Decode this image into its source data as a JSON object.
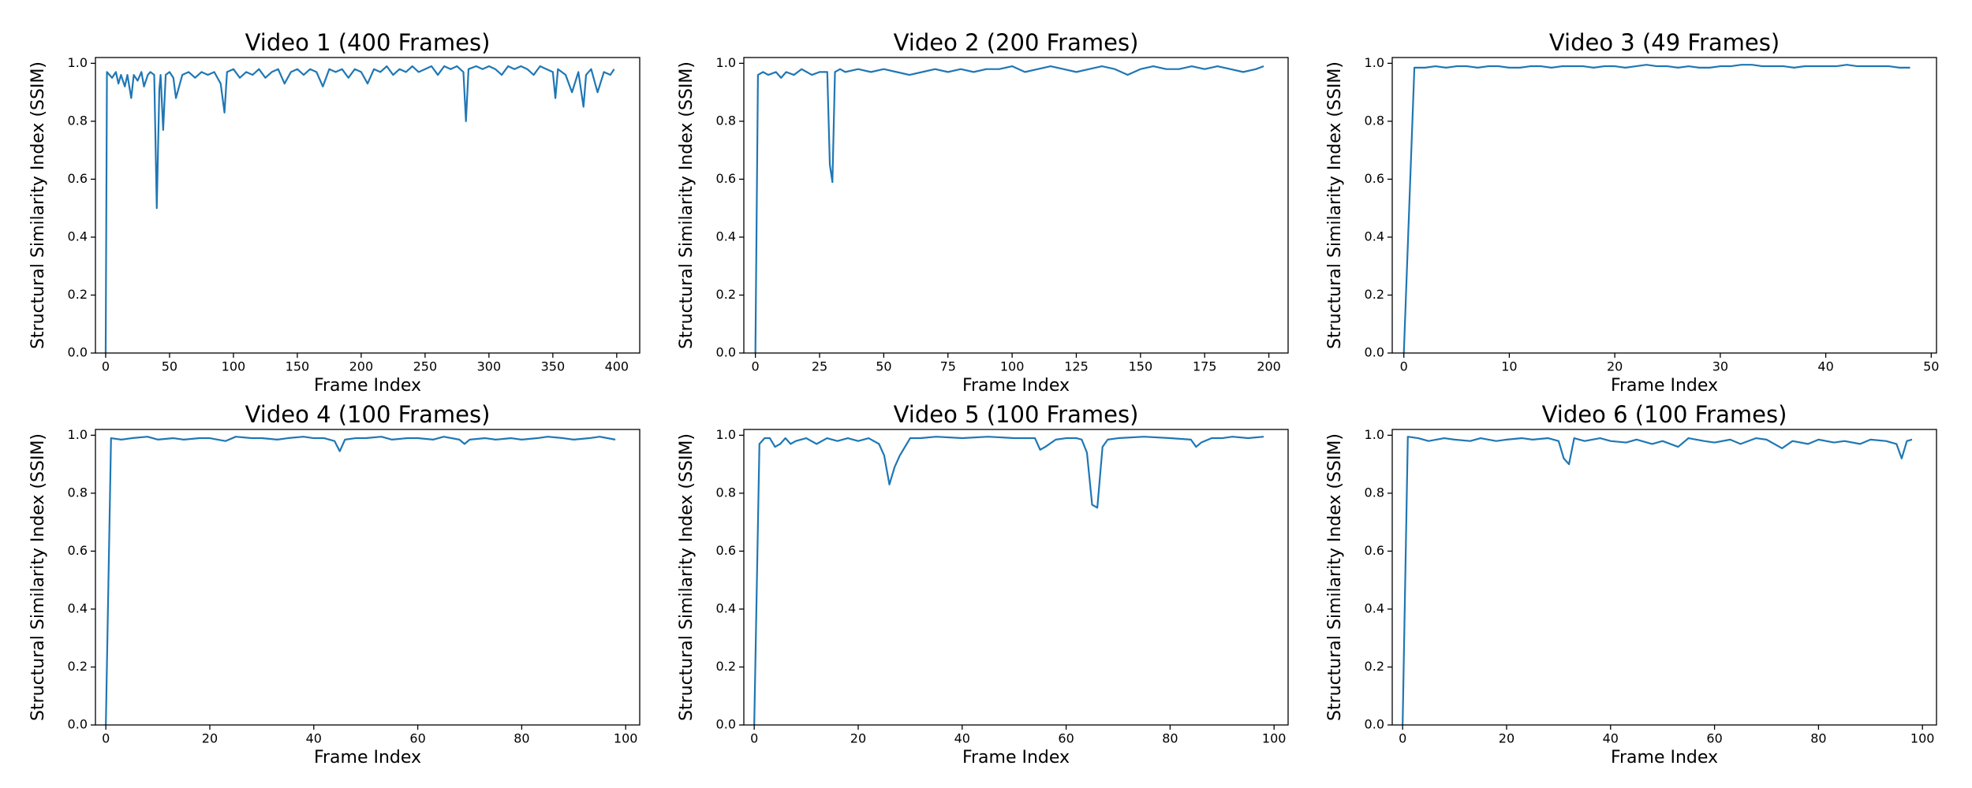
{
  "chart_data": [
    {
      "type": "line",
      "title": "Video 1 (400 Frames)",
      "xlabel": "Frame Index",
      "ylabel": "Structural Similarity Index (SSIM)",
      "color": "#1f77b4",
      "x": [
        0,
        1,
        5,
        8,
        10,
        12,
        15,
        17,
        20,
        22,
        25,
        28,
        30,
        33,
        35,
        38,
        40,
        42,
        43,
        45,
        47,
        50,
        53,
        55,
        60,
        65,
        70,
        75,
        80,
        85,
        90,
        93,
        95,
        100,
        105,
        110,
        115,
        120,
        125,
        130,
        135,
        140,
        145,
        150,
        155,
        160,
        165,
        170,
        175,
        180,
        185,
        190,
        195,
        200,
        205,
        210,
        215,
        220,
        225,
        230,
        235,
        240,
        245,
        250,
        255,
        260,
        265,
        270,
        275,
        280,
        282,
        284,
        290,
        295,
        300,
        305,
        310,
        315,
        320,
        325,
        330,
        335,
        340,
        345,
        350,
        352,
        354,
        360,
        365,
        370,
        374,
        376,
        380,
        385,
        390,
        395,
        398
      ],
      "values": [
        0,
        0.97,
        0.95,
        0.97,
        0.93,
        0.96,
        0.92,
        0.96,
        0.88,
        0.96,
        0.94,
        0.97,
        0.92,
        0.96,
        0.97,
        0.96,
        0.5,
        0.91,
        0.96,
        0.77,
        0.96,
        0.97,
        0.95,
        0.88,
        0.96,
        0.97,
        0.95,
        0.97,
        0.96,
        0.97,
        0.93,
        0.83,
        0.97,
        0.98,
        0.95,
        0.97,
        0.96,
        0.98,
        0.95,
        0.97,
        0.98,
        0.93,
        0.97,
        0.98,
        0.96,
        0.98,
        0.97,
        0.92,
        0.98,
        0.97,
        0.98,
        0.95,
        0.98,
        0.97,
        0.93,
        0.98,
        0.97,
        0.99,
        0.96,
        0.98,
        0.97,
        0.99,
        0.97,
        0.98,
        0.99,
        0.96,
        0.99,
        0.98,
        0.99,
        0.97,
        0.8,
        0.98,
        0.99,
        0.98,
        0.99,
        0.98,
        0.96,
        0.99,
        0.98,
        0.99,
        0.98,
        0.96,
        0.99,
        0.98,
        0.97,
        0.88,
        0.98,
        0.96,
        0.9,
        0.97,
        0.85,
        0.96,
        0.98,
        0.9,
        0.97,
        0.96,
        0.98
      ],
      "xlim": [
        -8,
        418
      ],
      "xticks": [
        0,
        50,
        100,
        150,
        200,
        250,
        300,
        350,
        400
      ],
      "ylim": [
        0,
        1.02
      ],
      "yticks": [
        {
          "value": 0,
          "label": "0.0"
        },
        {
          "value": 0.2,
          "label": "0.2"
        },
        {
          "value": 0.4,
          "label": "0.4"
        },
        {
          "value": 0.6,
          "label": "0.6"
        },
        {
          "value": 0.8,
          "label": "0.8"
        },
        {
          "value": 1,
          "label": "1.0"
        }
      ]
    },
    {
      "type": "line",
      "title": "Video 2 (200 Frames)",
      "xlabel": "Frame Index",
      "ylabel": "Structural Similarity Index (SSIM)",
      "color": "#1f77b4",
      "x": [
        0,
        1,
        3,
        5,
        8,
        10,
        12,
        15,
        18,
        20,
        22,
        25,
        27,
        28,
        29,
        30,
        31,
        33,
        35,
        40,
        45,
        50,
        55,
        60,
        65,
        70,
        75,
        80,
        85,
        90,
        95,
        100,
        105,
        110,
        115,
        120,
        125,
        130,
        135,
        140,
        145,
        150,
        155,
        160,
        165,
        170,
        175,
        180,
        185,
        190,
        195,
        198
      ],
      "values": [
        0,
        0.96,
        0.97,
        0.96,
        0.97,
        0.95,
        0.97,
        0.96,
        0.98,
        0.97,
        0.96,
        0.97,
        0.97,
        0.97,
        0.65,
        0.59,
        0.97,
        0.98,
        0.97,
        0.98,
        0.97,
        0.98,
        0.97,
        0.96,
        0.97,
        0.98,
        0.97,
        0.98,
        0.97,
        0.98,
        0.98,
        0.99,
        0.97,
        0.98,
        0.99,
        0.98,
        0.97,
        0.98,
        0.99,
        0.98,
        0.96,
        0.98,
        0.99,
        0.98,
        0.98,
        0.99,
        0.98,
        0.99,
        0.98,
        0.97,
        0.98,
        0.99
      ],
      "xlim": [
        -4.5,
        207.5
      ],
      "xticks": [
        0,
        25,
        50,
        75,
        100,
        125,
        150,
        175,
        200
      ],
      "ylim": [
        0,
        1.02
      ],
      "yticks": [
        {
          "value": 0,
          "label": "0.0"
        },
        {
          "value": 0.2,
          "label": "0.2"
        },
        {
          "value": 0.4,
          "label": "0.4"
        },
        {
          "value": 0.6,
          "label": "0.6"
        },
        {
          "value": 0.8,
          "label": "0.8"
        },
        {
          "value": 1,
          "label": "1.0"
        }
      ]
    },
    {
      "type": "line",
      "title": "Video 3 (49 Frames)",
      "xlabel": "Frame Index",
      "ylabel": "Structural Similarity Index (SSIM)",
      "color": "#1f77b4",
      "x": [
        0,
        1,
        2,
        3,
        4,
        5,
        6,
        7,
        8,
        9,
        10,
        11,
        12,
        13,
        14,
        15,
        16,
        17,
        18,
        19,
        20,
        21,
        22,
        23,
        24,
        25,
        26,
        27,
        28,
        29,
        30,
        31,
        32,
        33,
        34,
        35,
        36,
        37,
        38,
        39,
        40,
        41,
        42,
        43,
        44,
        45,
        46,
        47,
        48
      ],
      "values": [
        0,
        0.985,
        0.985,
        0.99,
        0.985,
        0.99,
        0.99,
        0.985,
        0.99,
        0.99,
        0.985,
        0.985,
        0.99,
        0.99,
        0.985,
        0.99,
        0.99,
        0.99,
        0.985,
        0.99,
        0.99,
        0.985,
        0.99,
        0.995,
        0.99,
        0.99,
        0.985,
        0.99,
        0.985,
        0.985,
        0.99,
        0.99,
        0.995,
        0.995,
        0.99,
        0.99,
        0.99,
        0.985,
        0.99,
        0.99,
        0.99,
        0.99,
        0.995,
        0.99,
        0.99,
        0.99,
        0.99,
        0.985,
        0.985
      ],
      "xlim": [
        -1.1,
        50.5
      ],
      "xticks": [
        0,
        10,
        20,
        30,
        40,
        50
      ],
      "ylim": [
        0,
        1.02
      ],
      "yticks": [
        {
          "value": 0,
          "label": "0.0"
        },
        {
          "value": 0.2,
          "label": "0.2"
        },
        {
          "value": 0.4,
          "label": "0.4"
        },
        {
          "value": 0.6,
          "label": "0.6"
        },
        {
          "value": 0.8,
          "label": "0.8"
        },
        {
          "value": 1,
          "label": "1.0"
        }
      ]
    },
    {
      "type": "line",
      "title": "Video 4 (100 Frames)",
      "xlabel": "Frame Index",
      "ylabel": "Structural Similarity Index (SSIM)",
      "color": "#1f77b4",
      "x": [
        0,
        1,
        3,
        5,
        8,
        10,
        13,
        15,
        18,
        20,
        23,
        25,
        28,
        30,
        33,
        35,
        38,
        40,
        42,
        44,
        45,
        46,
        48,
        50,
        53,
        55,
        58,
        60,
        63,
        65,
        68,
        69,
        70,
        73,
        75,
        78,
        80,
        83,
        85,
        88,
        90,
        93,
        95,
        98
      ],
      "values": [
        0,
        0.99,
        0.985,
        0.99,
        0.995,
        0.985,
        0.99,
        0.985,
        0.99,
        0.99,
        0.98,
        0.995,
        0.99,
        0.99,
        0.985,
        0.99,
        0.995,
        0.99,
        0.99,
        0.98,
        0.945,
        0.985,
        0.99,
        0.99,
        0.995,
        0.985,
        0.99,
        0.99,
        0.985,
        0.995,
        0.985,
        0.97,
        0.985,
        0.99,
        0.985,
        0.99,
        0.985,
        0.99,
        0.995,
        0.99,
        0.985,
        0.99,
        0.995,
        0.985
      ],
      "xlim": [
        -2,
        102.7
      ],
      "xticks": [
        0,
        20,
        40,
        60,
        80,
        100
      ],
      "ylim": [
        0,
        1.02
      ],
      "yticks": [
        {
          "value": 0,
          "label": "0.0"
        },
        {
          "value": 0.2,
          "label": "0.2"
        },
        {
          "value": 0.4,
          "label": "0.4"
        },
        {
          "value": 0.6,
          "label": "0.6"
        },
        {
          "value": 0.8,
          "label": "0.8"
        },
        {
          "value": 1,
          "label": "1.0"
        }
      ]
    },
    {
      "type": "line",
      "title": "Video 5 (100 Frames)",
      "xlabel": "Frame Index",
      "ylabel": "Structural Similarity Index (SSIM)",
      "color": "#1f77b4",
      "x": [
        0,
        1,
        2,
        3,
        4,
        5,
        6,
        7,
        8,
        10,
        12,
        14,
        16,
        18,
        20,
        22,
        24,
        25,
        26,
        27,
        28,
        30,
        32,
        35,
        40,
        45,
        50,
        54,
        55,
        56,
        58,
        60,
        62,
        63,
        64,
        65,
        66,
        67,
        68,
        70,
        75,
        80,
        84,
        85,
        86,
        88,
        90,
        92,
        95,
        98
      ],
      "values": [
        0,
        0.97,
        0.99,
        0.99,
        0.96,
        0.97,
        0.99,
        0.97,
        0.98,
        0.99,
        0.97,
        0.99,
        0.98,
        0.99,
        0.98,
        0.99,
        0.97,
        0.93,
        0.83,
        0.89,
        0.93,
        0.99,
        0.99,
        0.995,
        0.99,
        0.995,
        0.99,
        0.99,
        0.95,
        0.96,
        0.985,
        0.99,
        0.99,
        0.985,
        0.94,
        0.76,
        0.75,
        0.96,
        0.985,
        0.99,
        0.995,
        0.99,
        0.985,
        0.96,
        0.975,
        0.99,
        0.99,
        0.995,
        0.99,
        0.995
      ],
      "xlim": [
        -2,
        102.7
      ],
      "xticks": [
        0,
        20,
        40,
        60,
        80,
        100
      ],
      "ylim": [
        0,
        1.02
      ],
      "yticks": [
        {
          "value": 0,
          "label": "0.0"
        },
        {
          "value": 0.2,
          "label": "0.2"
        },
        {
          "value": 0.4,
          "label": "0.4"
        },
        {
          "value": 0.6,
          "label": "0.6"
        },
        {
          "value": 0.8,
          "label": "0.8"
        },
        {
          "value": 1,
          "label": "1.0"
        }
      ]
    },
    {
      "type": "line",
      "title": "Video 6 (100 Frames)",
      "xlabel": "Frame Index",
      "ylabel": "Structural Similarity Index (SSIM)",
      "color": "#1f77b4",
      "x": [
        0,
        1,
        3,
        5,
        8,
        10,
        13,
        15,
        18,
        20,
        23,
        25,
        28,
        30,
        31,
        32,
        33,
        35,
        38,
        40,
        43,
        45,
        48,
        50,
        53,
        55,
        58,
        60,
        63,
        65,
        68,
        70,
        73,
        75,
        78,
        80,
        83,
        85,
        88,
        90,
        93,
        95,
        96,
        97,
        98
      ],
      "values": [
        0,
        0.995,
        0.99,
        0.98,
        0.99,
        0.985,
        0.98,
        0.99,
        0.98,
        0.985,
        0.99,
        0.985,
        0.99,
        0.98,
        0.92,
        0.9,
        0.99,
        0.98,
        0.99,
        0.98,
        0.975,
        0.985,
        0.97,
        0.98,
        0.96,
        0.99,
        0.98,
        0.975,
        0.985,
        0.97,
        0.99,
        0.985,
        0.955,
        0.98,
        0.97,
        0.985,
        0.975,
        0.98,
        0.97,
        0.985,
        0.98,
        0.97,
        0.92,
        0.98,
        0.985
      ],
      "xlim": [
        -2,
        102.7
      ],
      "xticks": [
        0,
        20,
        40,
        60,
        80,
        100
      ],
      "ylim": [
        0,
        1.02
      ],
      "yticks": [
        {
          "value": 0,
          "label": "0.0"
        },
        {
          "value": 0.2,
          "label": "0.2"
        },
        {
          "value": 0.4,
          "label": "0.4"
        },
        {
          "value": 0.6,
          "label": "0.6"
        },
        {
          "value": 0.8,
          "label": "0.8"
        },
        {
          "value": 1,
          "label": "1.0"
        }
      ]
    }
  ]
}
